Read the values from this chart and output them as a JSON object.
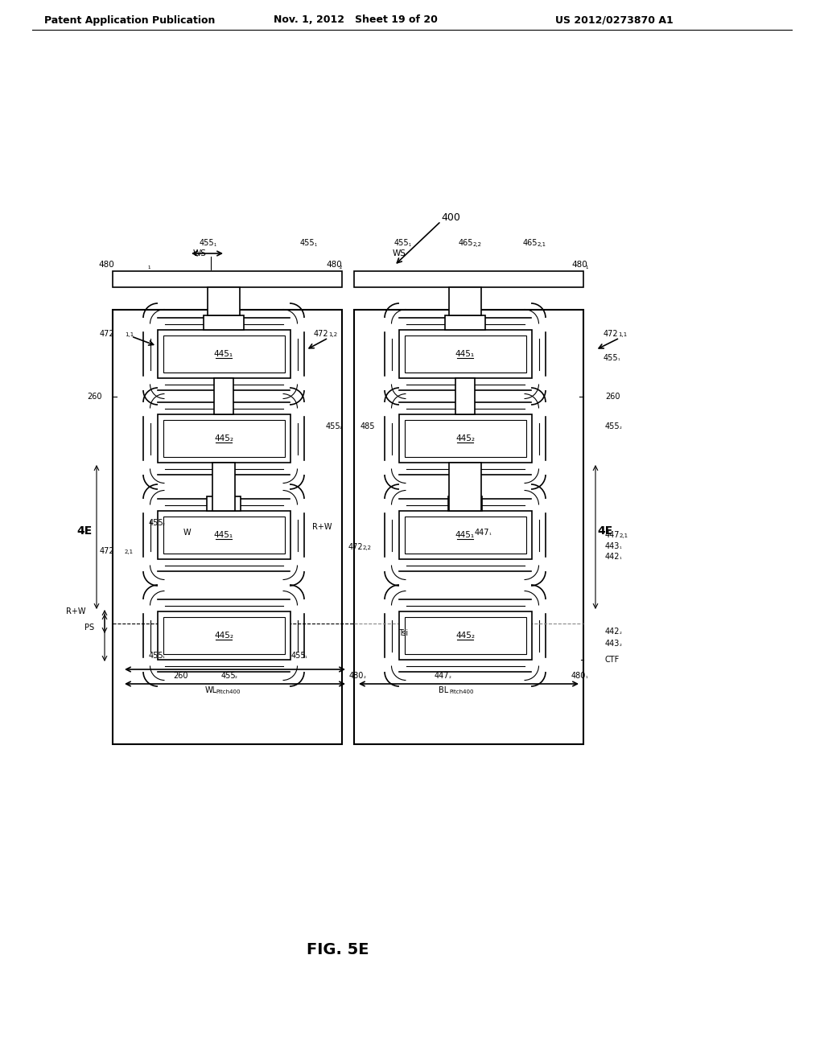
{
  "bg_color": "#ffffff",
  "line_color": "#000000",
  "header_left": "Patent Application Publication",
  "header_mid": "Nov. 1, 2012   Sheet 19 of 20",
  "header_right": "US 2012/0273870 A1",
  "figure_label": "FIG. 5E",
  "diagram_label": "400"
}
